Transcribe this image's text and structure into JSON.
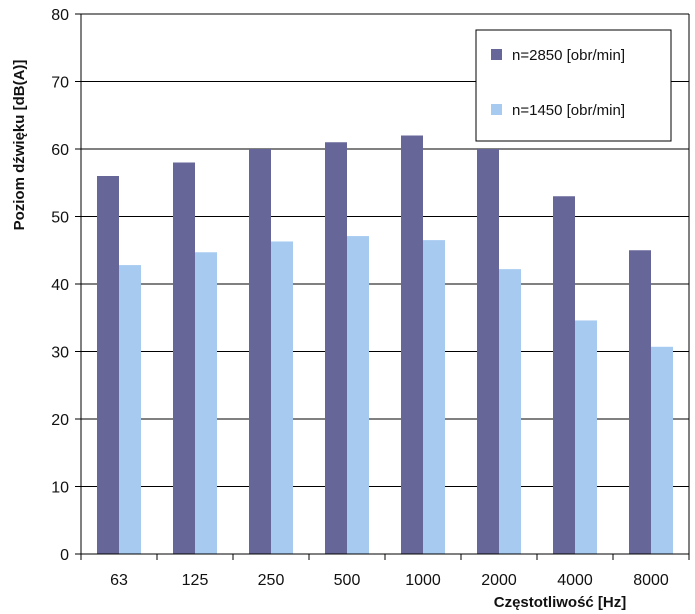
{
  "chart_data": {
    "type": "bar",
    "xlabel": "Częstotliwość [Hz]",
    "ylabel": "Poziom dźwięku [dB(A)]",
    "categories": [
      "63",
      "125",
      "250",
      "500",
      "1000",
      "2000",
      "4000",
      "8000"
    ],
    "yticks": [
      "0",
      "10",
      "20",
      "30",
      "40",
      "50",
      "60",
      "70",
      "80"
    ],
    "ylim": [
      0,
      80
    ],
    "grid": true,
    "legend_position": "top-right",
    "series": [
      {
        "name": "n=2850 [obr/min]",
        "color": "#666699",
        "values": [
          56,
          58,
          60,
          61,
          62,
          60,
          53,
          45
        ]
      },
      {
        "name": "n=1450 [obr/min]",
        "color": "#a6caf0",
        "values": [
          42.8,
          44.7,
          46.3,
          47.1,
          46.5,
          42.2,
          34.6,
          30.7
        ]
      }
    ]
  }
}
